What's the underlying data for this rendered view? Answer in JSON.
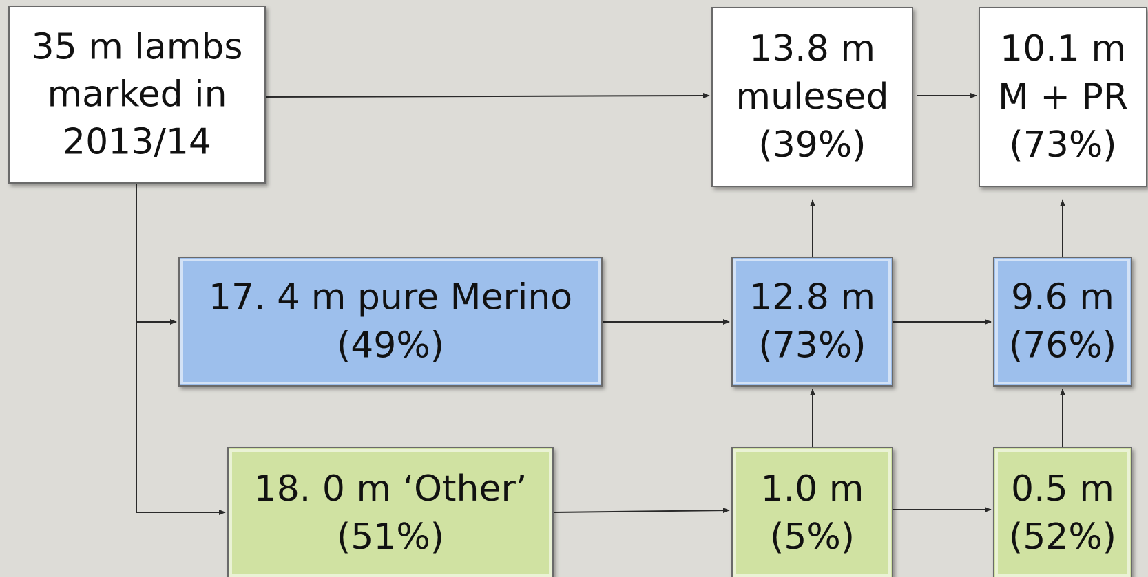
{
  "nodes": [
    {
      "lines": [
        "35 m lambs",
        "marked in",
        "2013/14"
      ]
    },
    {
      "lines": [
        "13.8 m",
        "mulesed",
        "(39%)"
      ]
    },
    {
      "lines": [
        "10.1 m",
        "M + PR",
        "(73%)"
      ]
    },
    {
      "lines": [
        "17. 4 m pure Merino",
        "(49%)"
      ]
    },
    {
      "lines": [
        "12.8 m",
        "(73%)"
      ]
    },
    {
      "lines": [
        "9.6 m",
        "(76%)"
      ]
    },
    {
      "lines": [
        "18. 0 m ‘Other’",
        "(51%)"
      ]
    },
    {
      "lines": [
        "1.0 m",
        "(5%)"
      ]
    },
    {
      "lines": [
        "0.5 m",
        "(52%)"
      ]
    }
  ]
}
